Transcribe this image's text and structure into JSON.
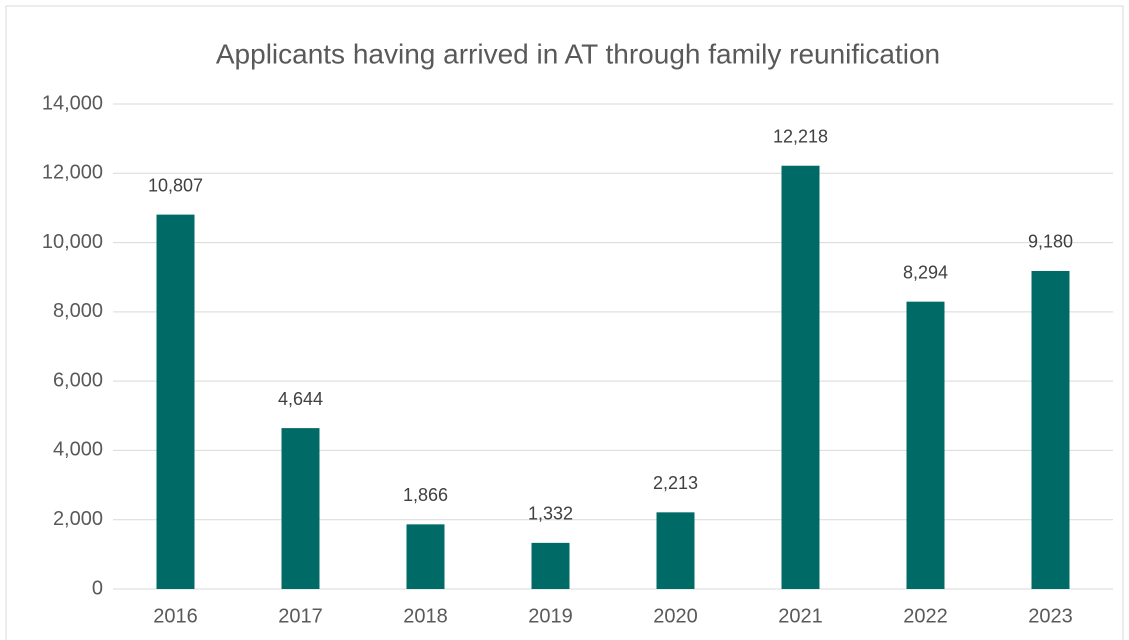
{
  "chart_data": {
    "type": "bar",
    "title": "Applicants having arrived in AT through family reunification",
    "categories": [
      "2016",
      "2017",
      "2018",
      "2019",
      "2020",
      "2021",
      "2022",
      "2023"
    ],
    "values": [
      10807,
      4644,
      1866,
      1332,
      2213,
      12218,
      8294,
      9180
    ],
    "value_labels": [
      "10,807",
      "4,644",
      "1,866",
      "1,332",
      "2,213",
      "12,218",
      "8,294",
      "9,180"
    ],
    "color": "#006b66",
    "ylim": [
      0,
      14000
    ],
    "yticks": [
      0,
      {
        "value": 2000,
        "label": "2,000"
      },
      {
        "value": 4000,
        "label": "4,000"
      },
      {
        "value": 6000,
        "label": "6,000"
      },
      {
        "value": 8000,
        "label": "8,000"
      },
      {
        "value": 10000,
        "label": "10,000"
      },
      {
        "value": 12000,
        "label": "12,000"
      },
      {
        "value": 14000,
        "label": "14,000"
      }
    ],
    "grid": true
  }
}
